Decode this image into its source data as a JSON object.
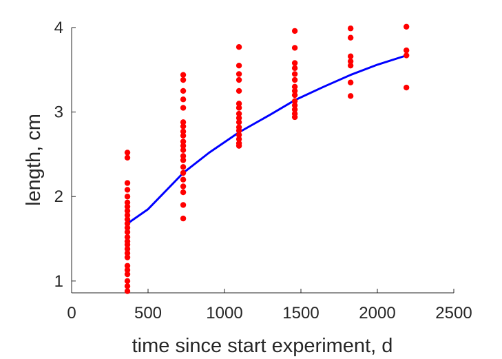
{
  "chart_data": {
    "type": "scatter",
    "title": "",
    "xlabel": "time since start experiment, d",
    "ylabel": "length, cm",
    "xlim": [
      0,
      2500
    ],
    "ylim": [
      0.86,
      4.0
    ],
    "xticks": [
      0,
      500,
      1000,
      1500,
      2000,
      2500
    ],
    "yticks": [
      1,
      2,
      3,
      4
    ],
    "grid": false,
    "colors": {
      "points": "#ff0000",
      "fit": "#0000ff",
      "axis": "#262626"
    },
    "series": [
      {
        "kind": "scatter",
        "points": [
          [
            365,
            2.52
          ],
          [
            365,
            2.46
          ],
          [
            365,
            2.16
          ],
          [
            365,
            2.08
          ],
          [
            365,
            2.0
          ],
          [
            365,
            1.93
          ],
          [
            365,
            1.88
          ],
          [
            365,
            1.83
          ],
          [
            365,
            1.78
          ],
          [
            365,
            1.73
          ],
          [
            365,
            1.68
          ],
          [
            365,
            1.63
          ],
          [
            365,
            1.58
          ],
          [
            365,
            1.52
          ],
          [
            365,
            1.47
          ],
          [
            365,
            1.43
          ],
          [
            365,
            1.38
          ],
          [
            365,
            1.33
          ],
          [
            365,
            1.28
          ],
          [
            365,
            1.18
          ],
          [
            365,
            1.13
          ],
          [
            365,
            1.08
          ],
          [
            365,
            1.0
          ],
          [
            365,
            0.94
          ],
          [
            365,
            0.88
          ],
          [
            730,
            3.44
          ],
          [
            730,
            3.38
          ],
          [
            730,
            3.25
          ],
          [
            730,
            3.15
          ],
          [
            730,
            3.05
          ],
          [
            730,
            2.88
          ],
          [
            730,
            2.83
          ],
          [
            730,
            2.77
          ],
          [
            730,
            2.72
          ],
          [
            730,
            2.65
          ],
          [
            730,
            2.6
          ],
          [
            730,
            2.55
          ],
          [
            730,
            2.48
          ],
          [
            730,
            2.43
          ],
          [
            730,
            2.35
          ],
          [
            730,
            2.28
          ],
          [
            730,
            2.2
          ],
          [
            730,
            2.12
          ],
          [
            730,
            2.05
          ],
          [
            730,
            1.9
          ],
          [
            730,
            1.74
          ],
          [
            1095,
            3.77
          ],
          [
            1095,
            3.55
          ],
          [
            1095,
            3.45
          ],
          [
            1095,
            3.38
          ],
          [
            1095,
            3.25
          ],
          [
            1095,
            3.1
          ],
          [
            1095,
            3.05
          ],
          [
            1095,
            2.98
          ],
          [
            1095,
            2.93
          ],
          [
            1095,
            2.88
          ],
          [
            1095,
            2.82
          ],
          [
            1095,
            2.78
          ],
          [
            1095,
            2.73
          ],
          [
            1095,
            2.68
          ],
          [
            1095,
            2.63
          ],
          [
            1095,
            2.6
          ],
          [
            1460,
            3.96
          ],
          [
            1460,
            3.76
          ],
          [
            1460,
            3.58
          ],
          [
            1460,
            3.52
          ],
          [
            1460,
            3.45
          ],
          [
            1460,
            3.38
          ],
          [
            1460,
            3.3
          ],
          [
            1460,
            3.25
          ],
          [
            1460,
            3.2
          ],
          [
            1460,
            3.13
          ],
          [
            1460,
            3.08
          ],
          [
            1460,
            3.03
          ],
          [
            1460,
            2.98
          ],
          [
            1460,
            2.94
          ],
          [
            1825,
            3.99
          ],
          [
            1825,
            3.88
          ],
          [
            1825,
            3.66
          ],
          [
            1825,
            3.6
          ],
          [
            1825,
            3.55
          ],
          [
            1825,
            3.35
          ],
          [
            1825,
            3.19
          ],
          [
            2190,
            4.01
          ],
          [
            2190,
            3.73
          ],
          [
            2190,
            3.67
          ],
          [
            2190,
            3.29
          ]
        ]
      },
      {
        "kind": "line",
        "points": [
          [
            365,
            1.68
          ],
          [
            500,
            1.85
          ],
          [
            730,
            2.28
          ],
          [
            900,
            2.52
          ],
          [
            1095,
            2.76
          ],
          [
            1300,
            2.97
          ],
          [
            1460,
            3.14
          ],
          [
            1650,
            3.3
          ],
          [
            1825,
            3.44
          ],
          [
            2000,
            3.56
          ],
          [
            2190,
            3.67
          ]
        ]
      }
    ]
  }
}
